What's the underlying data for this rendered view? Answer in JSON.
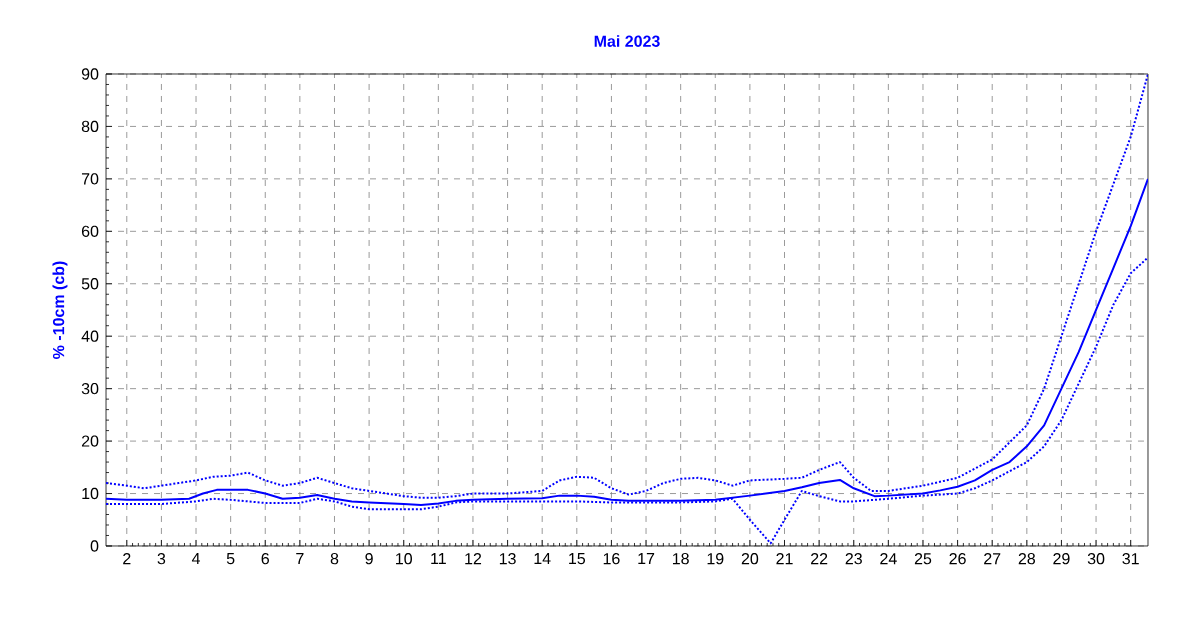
{
  "chart_data": {
    "type": "line",
    "title": "Mai 2023",
    "ylabel": "% -10cm (cb)",
    "xlim": [
      1.4,
      31.5
    ],
    "ylim": [
      0,
      90
    ],
    "xticks": [
      2,
      3,
      4,
      5,
      6,
      7,
      8,
      9,
      10,
      11,
      12,
      13,
      14,
      15,
      16,
      17,
      18,
      19,
      20,
      21,
      22,
      23,
      24,
      25,
      26,
      27,
      28,
      29,
      30,
      31
    ],
    "yticks": [
      0,
      10,
      20,
      30,
      40,
      50,
      60,
      70,
      80,
      90
    ],
    "grid": true,
    "marker": "none",
    "series": [
      {
        "color": "#0000ff",
        "line_style": "solid",
        "x": [
          1.4,
          2,
          3,
          3.8,
          4.2,
          4.6,
          5.5,
          6,
          6.5,
          7,
          7.5,
          8,
          8.5,
          9,
          10,
          10.5,
          11,
          11.5,
          12,
          13,
          14,
          14.5,
          15,
          15.5,
          16,
          16.5,
          17,
          18,
          19,
          20,
          21,
          21.5,
          22,
          22.6,
          23,
          23.6,
          24,
          25,
          25.5,
          26,
          26.5,
          27,
          27.5,
          28,
          28.5,
          29,
          29.5,
          30,
          30.5,
          31,
          31.5
        ],
        "values": [
          9,
          8.8,
          8.8,
          9,
          10,
          10.7,
          10.7,
          10,
          9,
          9.2,
          9.7,
          9,
          8.5,
          8.3,
          8,
          7.8,
          8.1,
          8.6,
          8.8,
          9,
          9.1,
          9.6,
          9.6,
          9.4,
          8.8,
          8.6,
          8.6,
          8.6,
          8.8,
          9.6,
          10.5,
          11.2,
          12,
          12.6,
          11,
          9.5,
          9.6,
          10,
          10.6,
          11.3,
          12.5,
          14.5,
          16,
          19,
          23,
          30,
          37,
          45,
          53,
          61,
          70
        ]
      },
      {
        "color": "#0000ff",
        "line_style": "dotted",
        "x": [
          1.4,
          2,
          2.5,
          3,
          3.5,
          4,
          4.5,
          5,
          5.5,
          6,
          6.5,
          7,
          7.5,
          8,
          8.5,
          9,
          10,
          10.5,
          11,
          11.5,
          12,
          13,
          14,
          14.5,
          15,
          15.5,
          16,
          16.5,
          17,
          17.5,
          18,
          18.5,
          19,
          19.5,
          20,
          21,
          21.5,
          22,
          22.6,
          23,
          23.5,
          24,
          25,
          26,
          27,
          28,
          28.5,
          29,
          29.5,
          30,
          30.5,
          31,
          31.5
        ],
        "values": [
          12,
          11.5,
          11,
          11.5,
          12,
          12.5,
          13.2,
          13.4,
          14,
          12.5,
          11.5,
          12,
          13,
          12,
          11,
          10.5,
          9.5,
          9.2,
          9.2,
          9.5,
          10,
          10,
          10.5,
          12.5,
          13.2,
          13,
          11,
          9.8,
          10.5,
          12,
          12.8,
          13,
          12.5,
          11.5,
          12.5,
          12.8,
          13,
          14.5,
          16,
          13,
          10.5,
          10.5,
          11.5,
          13,
          16.5,
          23,
          30,
          40,
          50,
          60,
          69,
          78,
          90
        ]
      },
      {
        "color": "#0000ff",
        "line_style": "dotted",
        "x": [
          1.4,
          2,
          3,
          4,
          4.5,
          5,
          5.5,
          6,
          7,
          7.5,
          8,
          8.5,
          9,
          10,
          10.5,
          11,
          11.5,
          12,
          13,
          14,
          15,
          16,
          17,
          18,
          19,
          19.5,
          20,
          20.6,
          21,
          21.5,
          22,
          22.6,
          23,
          24,
          25,
          26,
          26.5,
          27,
          28,
          28.5,
          29,
          29.5,
          30,
          30.5,
          31,
          31.5
        ],
        "values": [
          8,
          8,
          8,
          8.5,
          9,
          8.8,
          8.5,
          8.2,
          8.2,
          9,
          8.5,
          7.5,
          7,
          7,
          7,
          7.5,
          8.3,
          8.5,
          8.5,
          8.5,
          8.5,
          8.3,
          8.3,
          8.3,
          8.5,
          9,
          5,
          0.5,
          5,
          10.5,
          9.5,
          8.5,
          8.5,
          9,
          9.6,
          10,
          11,
          12.5,
          16,
          19,
          24,
          31,
          38,
          46,
          52,
          55
        ]
      }
    ]
  }
}
